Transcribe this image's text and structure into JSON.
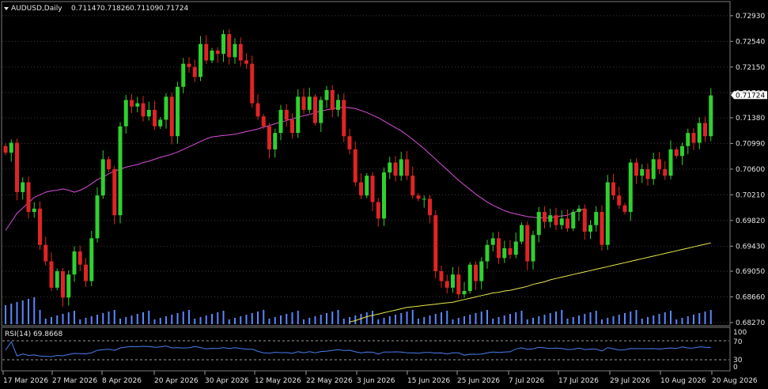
{
  "header": {
    "symbol": "AUDUSD,Daily",
    "open": "0.71147",
    "high": "0.71826",
    "low": "0.71109",
    "close": "0.71724"
  },
  "rsi": {
    "label": "RSI(14) 69.8668",
    "levels": [
      "70",
      "30",
      "0"
    ],
    "ticks": [
      "100"
    ]
  },
  "colors": {
    "background": "#000000",
    "bull": "#2fd12f",
    "bear": "#e02424",
    "ma_fast": "#d94fd9",
    "ma_slow": "#e8e84a",
    "volume": "#5b86ff",
    "rsi_line": "#4a7df0",
    "grid": "#3a3a3a"
  },
  "chart_data": {
    "type": "candlestick",
    "title": "AUDUSD,Daily",
    "ylim": [
      0.6827,
      0.7312
    ],
    "y_ticks": [
      "0.72930",
      "0.72540",
      "0.72150",
      "0.71760",
      "0.71380",
      "0.70990",
      "0.70600",
      "0.70210",
      "0.69820",
      "0.69430",
      "0.69050",
      "0.68660",
      "0.68270"
    ],
    "current_price": "0.71724",
    "x_labels": [
      "17 Mar 2026",
      "27 Mar 2026",
      "8 Apr 2026",
      "20 Apr 2026",
      "30 Apr 2026",
      "12 May 2026",
      "22 May 2026",
      "3 Jun 2026",
      "15 Jun 2026",
      "25 Jun 2026",
      "7 Jul 2026",
      "17 Jul 2026",
      "29 Jul 2026",
      "10 Aug 2026",
      "20 Aug 2026"
    ],
    "closes": [
      0.7085,
      0.71,
      0.7025,
      0.704,
      0.6995,
      0.7,
      0.6945,
      0.692,
      0.688,
      0.6905,
      0.6865,
      0.69,
      0.6935,
      0.6915,
      0.689,
      0.6955,
      0.702,
      0.7075,
      0.706,
      0.699,
      0.7125,
      0.7165,
      0.7155,
      0.716,
      0.714,
      0.715,
      0.7125,
      0.7135,
      0.717,
      0.711,
      0.7185,
      0.722,
      0.7215,
      0.72,
      0.725,
      0.7225,
      0.724,
      0.7235,
      0.7265,
      0.723,
      0.725,
      0.7225,
      0.722,
      0.716,
      0.714,
      0.7125,
      0.709,
      0.7115,
      0.715,
      0.7135,
      0.7115,
      0.717,
      0.715,
      0.717,
      0.713,
      0.7165,
      0.718,
      0.715,
      0.7165,
      0.711,
      0.709,
      0.704,
      0.702,
      0.705,
      0.701,
      0.6985,
      0.7055,
      0.707,
      0.705,
      0.7075,
      0.705,
      0.702,
      0.7015,
      0.7015,
      0.699,
      0.6905,
      0.689,
      0.688,
      0.69,
      0.687,
      0.6875,
      0.6915,
      0.689,
      0.692,
      0.6945,
      0.6955,
      0.6925,
      0.694,
      0.693,
      0.695,
      0.6975,
      0.692,
      0.696,
      0.6995,
      0.698,
      0.699,
      0.6975,
      0.6985,
      0.697,
      0.6995,
      0.7,
      0.6965,
      0.6975,
      0.6995,
      0.6945,
      0.704,
      0.702,
      0.7005,
      0.6995,
      0.707,
      0.705,
      0.706,
      0.7045,
      0.7075,
      0.706,
      0.705,
      0.709,
      0.708,
      0.7095,
      0.7115,
      0.71,
      0.713,
      0.711,
      0.7172
    ],
    "ma_fast": [
      0.6967,
      0.698,
      0.6993,
      0.7001,
      0.7009,
      0.7017,
      0.7021,
      0.7025,
      0.7027,
      0.7028,
      0.703,
      0.7028,
      0.7025,
      0.7028,
      0.7032,
      0.7038,
      0.7044,
      0.7048,
      0.7053,
      0.7057,
      0.706,
      0.7063,
      0.7065,
      0.7067,
      0.707,
      0.7072,
      0.7075,
      0.7078,
      0.708,
      0.7083,
      0.7086,
      0.709,
      0.7094,
      0.7098,
      0.7102,
      0.7106,
      0.7109,
      0.711,
      0.7111,
      0.7112,
      0.7113,
      0.7115,
      0.7117,
      0.7119,
      0.7121,
      0.7124,
      0.7126,
      0.7129,
      0.7131,
      0.7134,
      0.7136,
      0.7139,
      0.7141,
      0.7143,
      0.7146,
      0.7148,
      0.715,
      0.7152,
      0.7153,
      0.7154,
      0.7153,
      0.7152,
      0.7149,
      0.7146,
      0.7142,
      0.7138,
      0.7133,
      0.7128,
      0.7123,
      0.7118,
      0.7112,
      0.7105,
      0.7098,
      0.7091,
      0.7083,
      0.7075,
      0.7067,
      0.7059,
      0.7051,
      0.7043,
      0.7036,
      0.7029,
      0.7022,
      0.7016,
      0.701,
      0.7005,
      0.7001,
      0.6997,
      0.6994,
      0.6992,
      0.699,
      0.6988,
      0.6987,
      0.6986,
      0.6986,
      0.6986,
      0.6988,
      0.6989,
      0.699,
      0.6994,
      0.6997,
      0.7
    ],
    "ma_slow": [
      0.6828,
      0.683,
      0.6833,
      0.6836,
      0.6838,
      0.684,
      0.6842,
      0.6844,
      0.6846,
      0.6848,
      0.685,
      0.6851,
      0.6852,
      0.6853,
      0.6854,
      0.6855,
      0.6856,
      0.6857,
      0.6858,
      0.686,
      0.6862,
      0.6864,
      0.6866,
      0.6868,
      0.687,
      0.6872,
      0.6873,
      0.6875,
      0.6876,
      0.6878,
      0.688,
      0.6882,
      0.6885,
      0.6887,
      0.6889,
      0.6892,
      0.6894,
      0.6896,
      0.6898,
      0.69,
      0.6902,
      0.6904,
      0.6906,
      0.6908,
      0.691,
      0.6912,
      0.6914,
      0.6916,
      0.6918,
      0.692,
      0.6922,
      0.6924,
      0.6926,
      0.6928,
      0.693,
      0.6932,
      0.6934,
      0.6936,
      0.6938,
      0.694,
      0.6942,
      0.6944,
      0.6946,
      0.6948
    ]
  }
}
